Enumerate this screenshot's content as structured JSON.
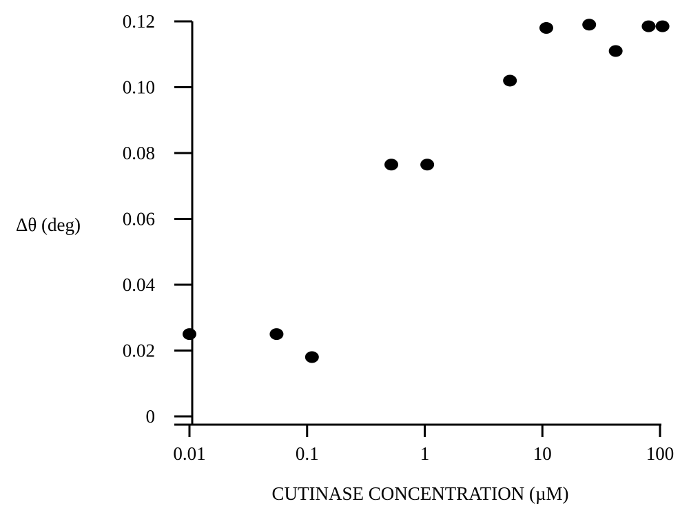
{
  "chart_data": {
    "type": "scatter",
    "title": "",
    "xlabel": "CUTINASE CONCENTRATION (µM)",
    "ylabel": "Δθ (deg)",
    "x_scale": "log",
    "xlim": [
      0.01,
      100
    ],
    "ylim": [
      0,
      0.12
    ],
    "x_ticks": [
      0.01,
      0.1,
      1,
      10,
      100
    ],
    "x_tick_labels": [
      "0.01",
      "0.1",
      "1",
      "10",
      "100"
    ],
    "y_ticks": [
      0,
      0.02,
      0.04,
      0.06,
      0.08,
      0.1,
      0.12
    ],
    "y_tick_labels": [
      "0",
      "0.02",
      "0.04",
      "0.06",
      "0.08",
      "0.10",
      "0.12"
    ],
    "grid": false,
    "legend": "none",
    "marker_color": "#000000",
    "series": [
      {
        "x": [
          0.01,
          0.055,
          0.11,
          0.52,
          1.05,
          5.3,
          10.8,
          25,
          42,
          80,
          105
        ],
        "y": [
          0.025,
          0.025,
          0.018,
          0.0765,
          0.0765,
          0.102,
          0.118,
          0.119,
          0.111,
          0.1185,
          0.1185
        ]
      }
    ]
  }
}
